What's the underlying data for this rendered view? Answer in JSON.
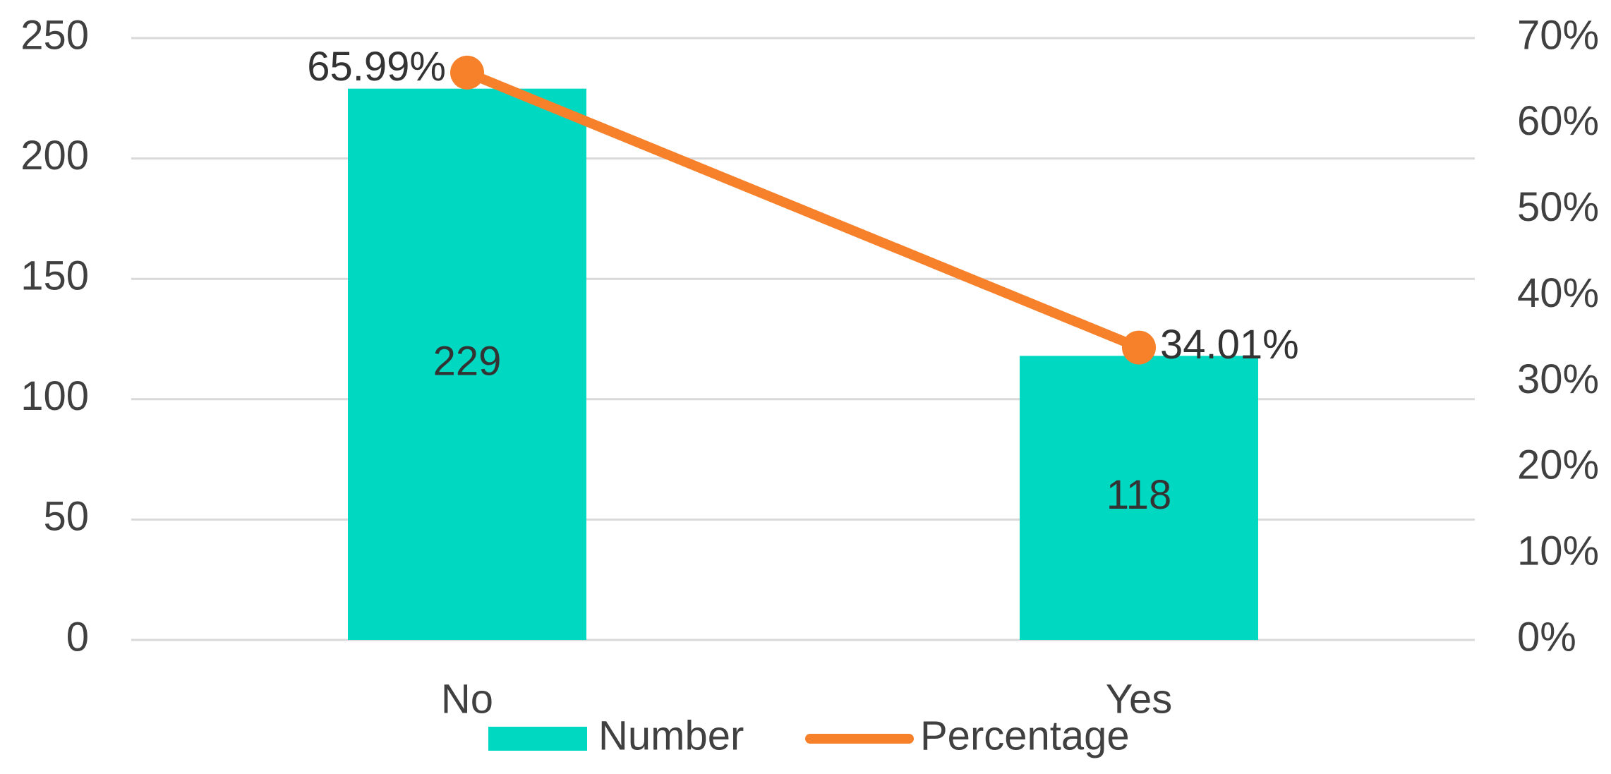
{
  "chart_data": {
    "type": "bar-line",
    "categories": [
      "No",
      "Yes"
    ],
    "series": [
      {
        "name": "Number",
        "type": "bar",
        "color": "#00d8c2",
        "values": [
          229,
          118
        ]
      },
      {
        "name": "Percentage",
        "type": "line",
        "axis": "y2",
        "color": "#f6812a",
        "values": [
          65.99,
          34.01
        ],
        "value_labels": [
          "65.99%",
          "34.01%"
        ]
      }
    ],
    "ylim": [
      0,
      250
    ],
    "yticks": [
      0,
      50,
      100,
      150,
      200,
      250
    ],
    "y2lim": [
      0,
      70
    ],
    "y2ticks": [
      {
        "value": 0,
        "label": "0%"
      },
      {
        "value": 10,
        "label": "10%"
      },
      {
        "value": 20,
        "label": "20%"
      },
      {
        "value": 30,
        "label": "30%"
      },
      {
        "value": 40,
        "label": "40%"
      },
      {
        "value": 50,
        "label": "50%"
      },
      {
        "value": 60,
        "label": "60%"
      },
      {
        "value": 70,
        "label": "70%"
      }
    ],
    "grid": true,
    "legend": "bottom"
  }
}
